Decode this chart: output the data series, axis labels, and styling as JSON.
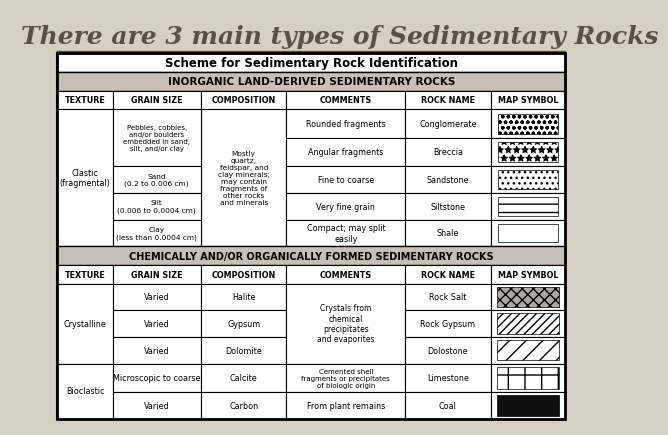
{
  "title": "There are 3 main types of Sedimentary Rocks",
  "table_title": "Scheme for Sedimentary Rock Identification",
  "bg_color": "#d6cfc4",
  "header1_text": "INORGANIC LAND-DERIVED SEDIMENTARY ROCKS",
  "header2_text": "CHEMICALLY AND/OR ORGANICALLY FORMED SEDIMENTARY ROCKS",
  "col_headers": [
    "TEXTURE",
    "GRAIN SIZE",
    "COMPOSITION",
    "COMMENTS",
    "ROCK NAME",
    "MAP SYMBOL"
  ],
  "title_color": "#5a5048",
  "header_bg": "#c8c0b4"
}
